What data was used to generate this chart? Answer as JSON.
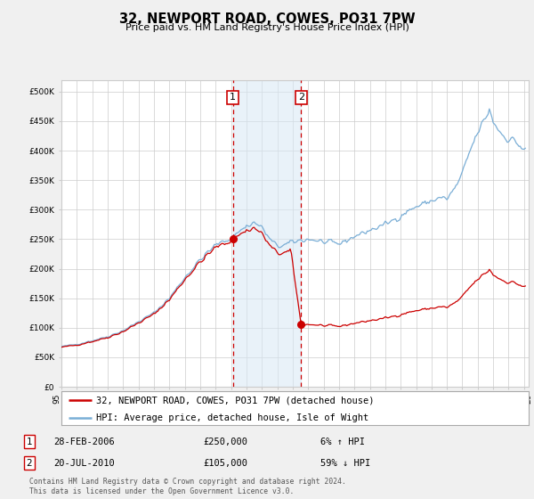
{
  "title": "32, NEWPORT ROAD, COWES, PO31 7PW",
  "subtitle": "Price paid vs. HM Land Registry's House Price Index (HPI)",
  "hpi_label": "HPI: Average price, detached house, Isle of Wight",
  "property_label": "32, NEWPORT ROAD, COWES, PO31 7PW (detached house)",
  "hpi_color": "#7aaed6",
  "property_color": "#cc0000",
  "sale1_year": 2006.125,
  "sale1_price": 250000,
  "sale1_label": "28-FEB-2006",
  "sale1_pct": "6% ↑ HPI",
  "sale2_year": 2010.542,
  "sale2_price": 105000,
  "sale2_label": "20-JUL-2010",
  "sale2_pct": "59% ↓ HPI",
  "footer": "Contains HM Land Registry data © Crown copyright and database right 2024.\nThis data is licensed under the Open Government Licence v3.0.",
  "ylim": [
    0,
    520000
  ],
  "yticks": [
    0,
    50000,
    100000,
    150000,
    200000,
    250000,
    300000,
    350000,
    400000,
    450000,
    500000
  ],
  "bg_color": "#f0f0f0",
  "plot_bg": "#ffffff",
  "shade_color": "#d8e8f5",
  "grid_color": "#cccccc"
}
